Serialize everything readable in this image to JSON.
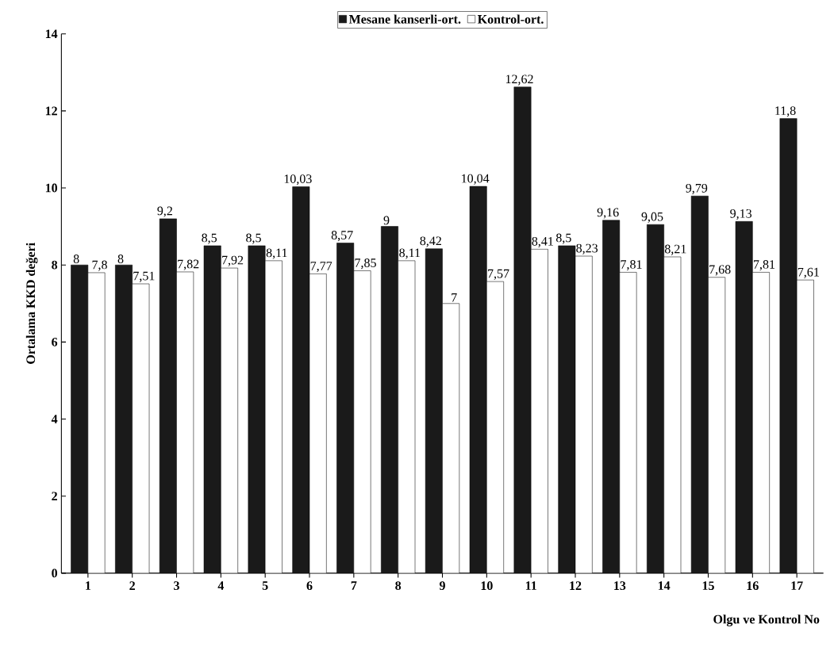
{
  "chart_data": {
    "type": "bar",
    "xlabel": "Olgu ve Kontrol No",
    "ylabel": "Ortalama KKD değeri",
    "categories": [
      "1",
      "2",
      "3",
      "4",
      "5",
      "6",
      "7",
      "8",
      "9",
      "10",
      "11",
      "12",
      "13",
      "14",
      "15",
      "16",
      "17"
    ],
    "series": [
      {
        "name": "Mesane kanserli-ort.",
        "color": "#1a1a1a",
        "values": [
          8,
          8,
          9.2,
          8.5,
          8.5,
          10.03,
          8.57,
          9,
          8.42,
          10.04,
          12.62,
          8.5,
          9.16,
          9.05,
          9.79,
          9.13,
          11.8
        ],
        "value_labels": [
          "8",
          "8",
          "9,2",
          "8,5",
          "8,5",
          "10,03",
          "8,57",
          "9",
          "8,42",
          "10,04",
          "12,62",
          "8,5",
          "9,16",
          "9,05",
          "9,79",
          "9,13",
          "11,8"
        ]
      },
      {
        "name": "Kontrol-ort.",
        "color": "#ffffff",
        "values": [
          7.8,
          7.51,
          7.82,
          7.92,
          8.11,
          7.77,
          7.85,
          8.11,
          7,
          7.57,
          8.41,
          8.23,
          7.81,
          8.21,
          7.68,
          7.81,
          7.61
        ],
        "value_labels": [
          "7,8",
          "7,51",
          "7,82",
          "7,92",
          "8,11",
          "7,77",
          "7,85",
          "8,11",
          "7",
          "7,57",
          "8,41",
          "8,23",
          "7,81",
          "8,21",
          "7,68",
          "7,81",
          "7,61"
        ]
      }
    ],
    "ylim": [
      0,
      14
    ],
    "yticks": [
      0,
      2,
      4,
      6,
      8,
      10,
      12,
      14
    ],
    "legend": "top"
  }
}
